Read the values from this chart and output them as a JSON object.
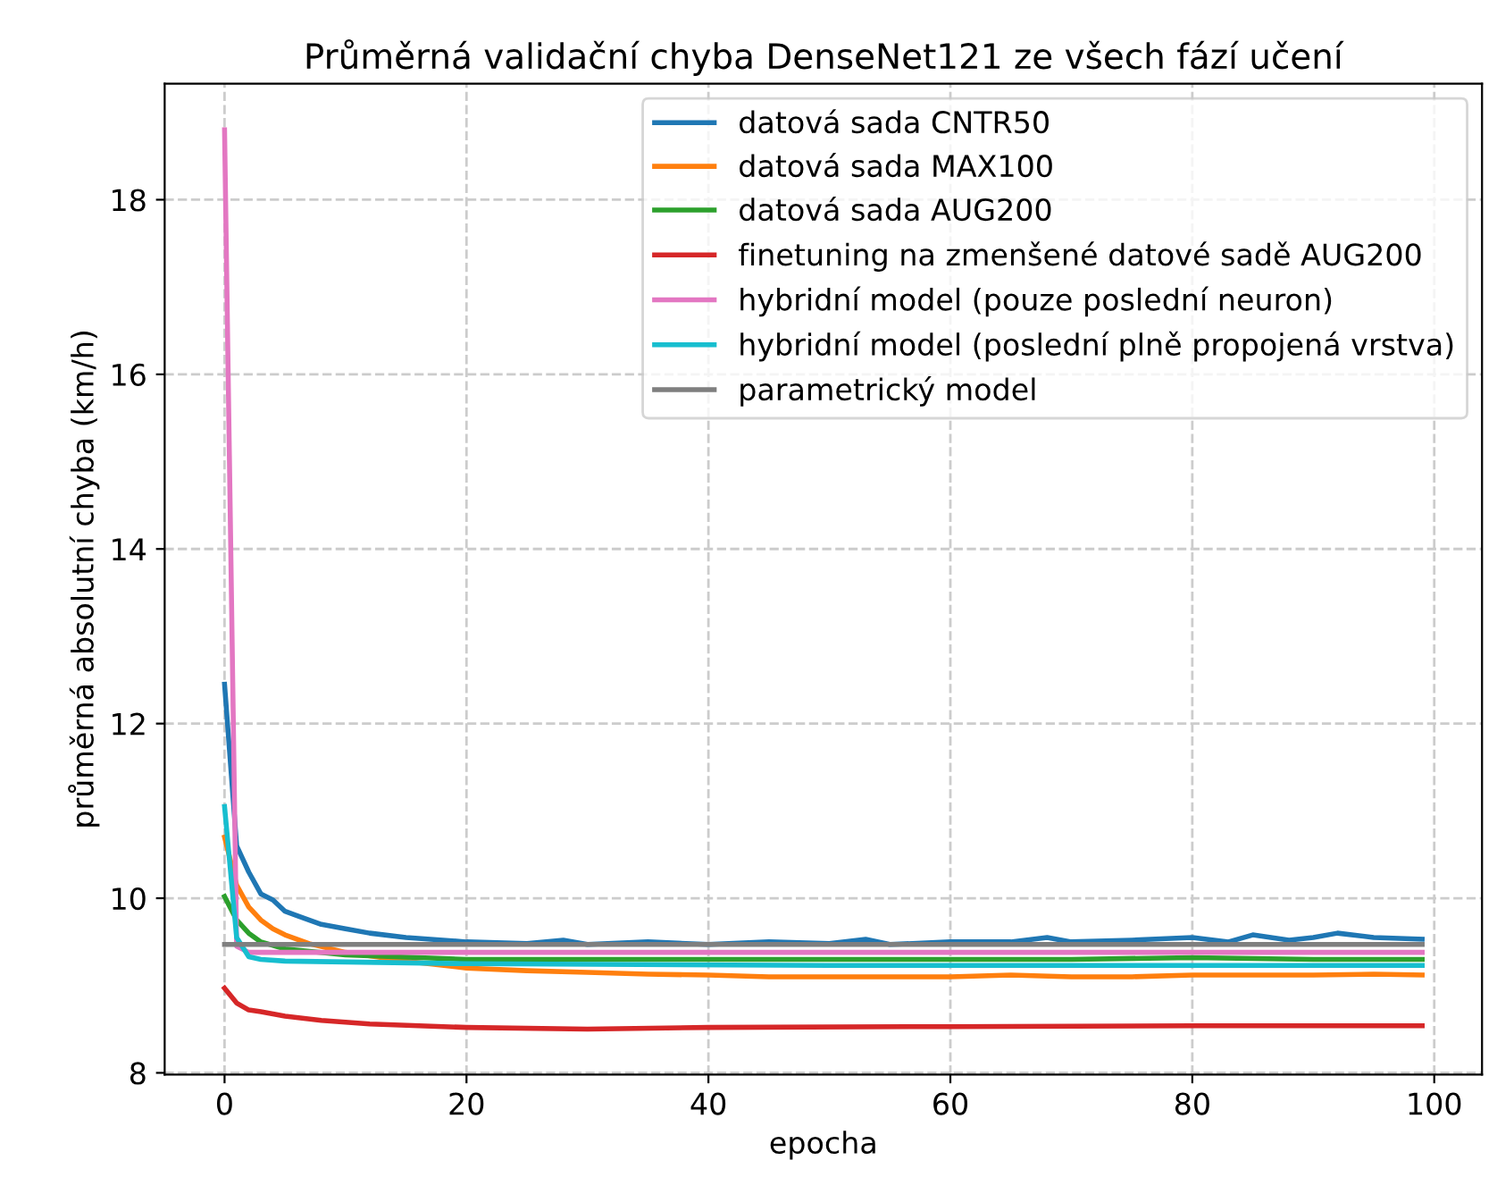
{
  "chart_data": {
    "type": "line",
    "title": "Průměrná validační chyba DenseNet121 ze všech fází učení",
    "xlabel": "epocha",
    "ylabel": "průměrná absolutní chyba (km/h)",
    "xlim": [
      -4.95,
      103.95
    ],
    "ylim": [
      7.98,
      19.33
    ],
    "xticks": [
      0,
      20,
      40,
      60,
      80,
      100
    ],
    "yticks": [
      8,
      10,
      12,
      14,
      16,
      18
    ],
    "grid": true,
    "legend": "top right",
    "line_style": "solid",
    "marker": "none",
    "series": [
      {
        "name": "datová sada CNTR50",
        "color": "#1f77b4",
        "x": [
          0,
          1,
          2,
          3,
          4,
          5,
          6,
          8,
          10,
          12,
          15,
          20,
          25,
          28,
          30,
          35,
          40,
          45,
          50,
          53,
          55,
          60,
          65,
          68,
          70,
          75,
          80,
          83,
          85,
          88,
          90,
          92,
          95,
          99
        ],
        "values": [
          12.45,
          10.6,
          10.3,
          10.05,
          9.98,
          9.85,
          9.8,
          9.7,
          9.65,
          9.6,
          9.55,
          9.5,
          9.48,
          9.52,
          9.47,
          9.5,
          9.47,
          9.5,
          9.48,
          9.53,
          9.47,
          9.5,
          9.5,
          9.55,
          9.5,
          9.52,
          9.55,
          9.5,
          9.58,
          9.52,
          9.55,
          9.6,
          9.55,
          9.53
        ]
      },
      {
        "name": "datová sada MAX100",
        "color": "#ff7f0e",
        "x": [
          0,
          1,
          2,
          3,
          4,
          5,
          7,
          10,
          15,
          20,
          25,
          30,
          35,
          40,
          45,
          50,
          55,
          60,
          65,
          70,
          75,
          80,
          85,
          90,
          95,
          99
        ],
        "values": [
          10.7,
          10.15,
          9.9,
          9.75,
          9.65,
          9.58,
          9.48,
          9.38,
          9.28,
          9.2,
          9.17,
          9.15,
          9.13,
          9.12,
          9.1,
          9.1,
          9.1,
          9.1,
          9.12,
          9.1,
          9.1,
          9.12,
          9.12,
          9.12,
          9.13,
          9.12
        ]
      },
      {
        "name": "datová sada AUG200",
        "color": "#2ca02c",
        "x": [
          0,
          1,
          2,
          3,
          5,
          10,
          20,
          30,
          40,
          50,
          60,
          70,
          80,
          90,
          99
        ],
        "values": [
          10.02,
          9.75,
          9.6,
          9.5,
          9.42,
          9.35,
          9.3,
          9.3,
          9.3,
          9.3,
          9.3,
          9.3,
          9.32,
          9.3,
          9.3
        ]
      },
      {
        "name": "finetuning na zmenšené datové sadě AUG200",
        "color": "#d62728",
        "x": [
          0,
          1,
          2,
          3,
          5,
          8,
          12,
          20,
          30,
          40,
          60,
          80,
          99
        ],
        "values": [
          8.97,
          8.8,
          8.72,
          8.7,
          8.65,
          8.6,
          8.56,
          8.52,
          8.5,
          8.52,
          8.53,
          8.54,
          8.54
        ]
      },
      {
        "name": "hybridní model (pouze poslední neuron)",
        "color": "#e377c2",
        "x": [
          0,
          1,
          2,
          10,
          50,
          99
        ],
        "values": [
          18.8,
          9.45,
          9.38,
          9.38,
          9.38,
          9.38
        ]
      },
      {
        "name": "hybridní model (poslední plně propojená vrstva)",
        "color": "#17becf",
        "x": [
          0,
          1,
          2,
          3,
          5,
          20,
          50,
          99
        ],
        "values": [
          11.05,
          9.55,
          9.33,
          9.3,
          9.28,
          9.25,
          9.23,
          9.23
        ]
      },
      {
        "name": "parametrický model",
        "color": "#7f7f7f",
        "x": [
          0,
          99
        ],
        "values": [
          9.47,
          9.47
        ]
      }
    ]
  }
}
